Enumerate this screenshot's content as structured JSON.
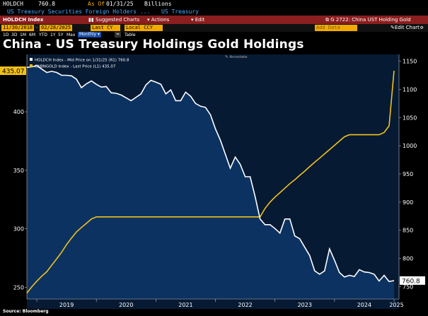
{
  "header": {
    "ticker": "HOLDCH",
    "last_value": "760.8",
    "as_of_label": "As Of",
    "as_of_date": "01/31/25",
    "units": "Billions",
    "security_name": "US Treasury Securities Foreign Holders ...",
    "security_category": "US Treasury"
  },
  "toolbar": {
    "index_name": "HOLDCH Index",
    "suggested_charts_label": "Suggested Charts",
    "actions_label": "Actions",
    "edit_label": "Edit",
    "chart_ref": "G 2722: China UST Holding Gold"
  },
  "range_bar": {
    "start_date": "11/30/2018",
    "end_date": "02/28/2025",
    "period_select": "Last CY",
    "local_ccy": "Local CCY",
    "add_data": "Add Data",
    "edit_chart": "Edit Chart"
  },
  "period_bar": {
    "periods": [
      "1D",
      "3D",
      "1M",
      "6M",
      "YTD",
      "1Y",
      "5Y",
      "Max"
    ],
    "frequency": "Monthly",
    "table_label": "Table"
  },
  "colors": {
    "holdings_line": "#ffffff",
    "gold_line": "#f2c21b",
    "plot_bg": "#071a33",
    "holdings_fill": "#0d3566",
    "header_bar": "#8b1e1e"
  },
  "chart_data": {
    "type": "line",
    "title": "China - US Treasury Holdings Gold Holdings",
    "annotate_label": "Annotate",
    "legend": [
      "HOLDCH Index - Mid Price on 1/31/25 (R1) 760.8",
      "CNBNGOLD Index - Last Price (L1) 435.07"
    ],
    "legend_position": "top-left",
    "source": "Source: Bloomberg",
    "x_tick_labels": [
      "2019",
      "2020",
      "2021",
      "2022",
      "2023",
      "2024",
      "2025"
    ],
    "left_axis": {
      "ylim": [
        240,
        449
      ],
      "ticks": [
        250,
        300,
        350,
        400
      ]
    },
    "right_axis": {
      "ylim": [
        728,
        1162
      ],
      "ticks": [
        750,
        800,
        850,
        900,
        950,
        1000,
        1050,
        1100,
        1150
      ]
    },
    "grid": false,
    "series": [
      {
        "name": "HOLDCH Index - Mid Price on 1/31/25 (R1) 760.8",
        "axis": "right",
        "last_value_label": "760.8",
        "values": [
          [
            "2018-11",
            1139
          ],
          [
            "2018-12",
            1140
          ],
          [
            "2019-01",
            1142
          ],
          [
            "2019-02",
            1136
          ],
          [
            "2019-03",
            1130
          ],
          [
            "2019-04",
            1132
          ],
          [
            "2019-05",
            1130
          ],
          [
            "2019-06",
            1125
          ],
          [
            "2019-07",
            1125
          ],
          [
            "2019-08",
            1124
          ],
          [
            "2019-09",
            1118
          ],
          [
            "2019-10",
            1103
          ],
          [
            "2019-11",
            1110
          ],
          [
            "2019-12",
            1115
          ],
          [
            "2020-01",
            1109
          ],
          [
            "2020-02",
            1104
          ],
          [
            "2020-03",
            1105
          ],
          [
            "2020-04",
            1094
          ],
          [
            "2020-05",
            1093
          ],
          [
            "2020-06",
            1090
          ],
          [
            "2020-07",
            1085
          ],
          [
            "2020-08",
            1080
          ],
          [
            "2020-09",
            1086
          ],
          [
            "2020-10",
            1092
          ],
          [
            "2020-11",
            1108
          ],
          [
            "2020-12",
            1116
          ],
          [
            "2021-01",
            1113
          ],
          [
            "2021-02",
            1109
          ],
          [
            "2021-03",
            1092
          ],
          [
            "2021-04",
            1099
          ],
          [
            "2021-05",
            1080
          ],
          [
            "2021-06",
            1080
          ],
          [
            "2021-07",
            1095
          ],
          [
            "2021-08",
            1088
          ],
          [
            "2021-09",
            1075
          ],
          [
            "2021-10",
            1070
          ],
          [
            "2021-11",
            1068
          ],
          [
            "2021-12",
            1055
          ],
          [
            "2022-01",
            1030
          ],
          [
            "2022-02",
            1010
          ],
          [
            "2022-03",
            985
          ],
          [
            "2022-04",
            960
          ],
          [
            "2022-05",
            980
          ],
          [
            "2022-06",
            967
          ],
          [
            "2022-07",
            945
          ],
          [
            "2022-08",
            945
          ],
          [
            "2022-09",
            910
          ],
          [
            "2022-10",
            870
          ],
          [
            "2022-11",
            860
          ],
          [
            "2022-12",
            860
          ],
          [
            "2023-01",
            853
          ],
          [
            "2023-02",
            845
          ],
          [
            "2023-03",
            870
          ],
          [
            "2023-04",
            870
          ],
          [
            "2023-05",
            840
          ],
          [
            "2023-06",
            835
          ],
          [
            "2023-07",
            820
          ],
          [
            "2023-08",
            805
          ],
          [
            "2023-09",
            778
          ],
          [
            "2023-10",
            772
          ],
          [
            "2023-11",
            778
          ],
          [
            "2023-12",
            817
          ],
          [
            "2024-01",
            797
          ],
          [
            "2024-02",
            775
          ],
          [
            "2024-03",
            767
          ],
          [
            "2024-04",
            770
          ],
          [
            "2024-05",
            768
          ],
          [
            "2024-06",
            780
          ],
          [
            "2024-07",
            776
          ],
          [
            "2024-08",
            775
          ],
          [
            "2024-09",
            772
          ],
          [
            "2024-10",
            760
          ],
          [
            "2024-11",
            770
          ],
          [
            "2024-12",
            759
          ],
          [
            "2025-01",
            760.8
          ]
        ]
      },
      {
        "name": "CNBNGOLD Index - Last Price (L1) 435.07",
        "axis": "left",
        "last_value_label": "435.07",
        "values": [
          [
            "2018-11",
            245.1
          ],
          [
            "2018-12",
            250.5
          ],
          [
            "2019-01",
            255.2
          ],
          [
            "2019-02",
            259.5
          ],
          [
            "2019-03",
            263.3
          ],
          [
            "2019-04",
            268.9
          ],
          [
            "2019-05",
            274.4
          ],
          [
            "2019-06",
            280.0
          ],
          [
            "2019-07",
            286.5
          ],
          [
            "2019-08",
            292.1
          ],
          [
            "2019-09",
            297.4
          ],
          [
            "2019-10",
            301.1
          ],
          [
            "2019-11",
            304.7
          ],
          [
            "2019-12",
            308.4
          ],
          [
            "2020-01",
            310.2
          ],
          [
            "2020-06",
            310.2
          ],
          [
            "2020-12",
            310.2
          ],
          [
            "2021-06",
            310.2
          ],
          [
            "2021-12",
            310.2
          ],
          [
            "2022-06",
            310.2
          ],
          [
            "2022-09",
            310.2
          ],
          [
            "2022-10",
            310.2
          ],
          [
            "2022-11",
            317.4
          ],
          [
            "2022-12",
            322.8
          ],
          [
            "2023-01",
            327.1
          ],
          [
            "2023-02",
            330.9
          ],
          [
            "2023-03",
            334.7
          ],
          [
            "2023-04",
            338.6
          ],
          [
            "2023-05",
            341.9
          ],
          [
            "2023-06",
            345.7
          ],
          [
            "2023-07",
            349.3
          ],
          [
            "2023-08",
            353.2
          ],
          [
            "2023-09",
            356.9
          ],
          [
            "2023-10",
            360.4
          ],
          [
            "2023-11",
            364.1
          ],
          [
            "2023-12",
            367.7
          ],
          [
            "2024-01",
            371.3
          ],
          [
            "2024-02",
            375.0
          ],
          [
            "2024-03",
            378.6
          ],
          [
            "2024-04",
            380.4
          ],
          [
            "2024-05",
            380.4
          ],
          [
            "2024-06",
            380.4
          ],
          [
            "2024-09",
            380.4
          ],
          [
            "2024-10",
            380.4
          ],
          [
            "2024-11",
            382.4
          ],
          [
            "2024-12",
            388.0
          ],
          [
            "2025-01",
            435.07
          ]
        ]
      }
    ]
  }
}
